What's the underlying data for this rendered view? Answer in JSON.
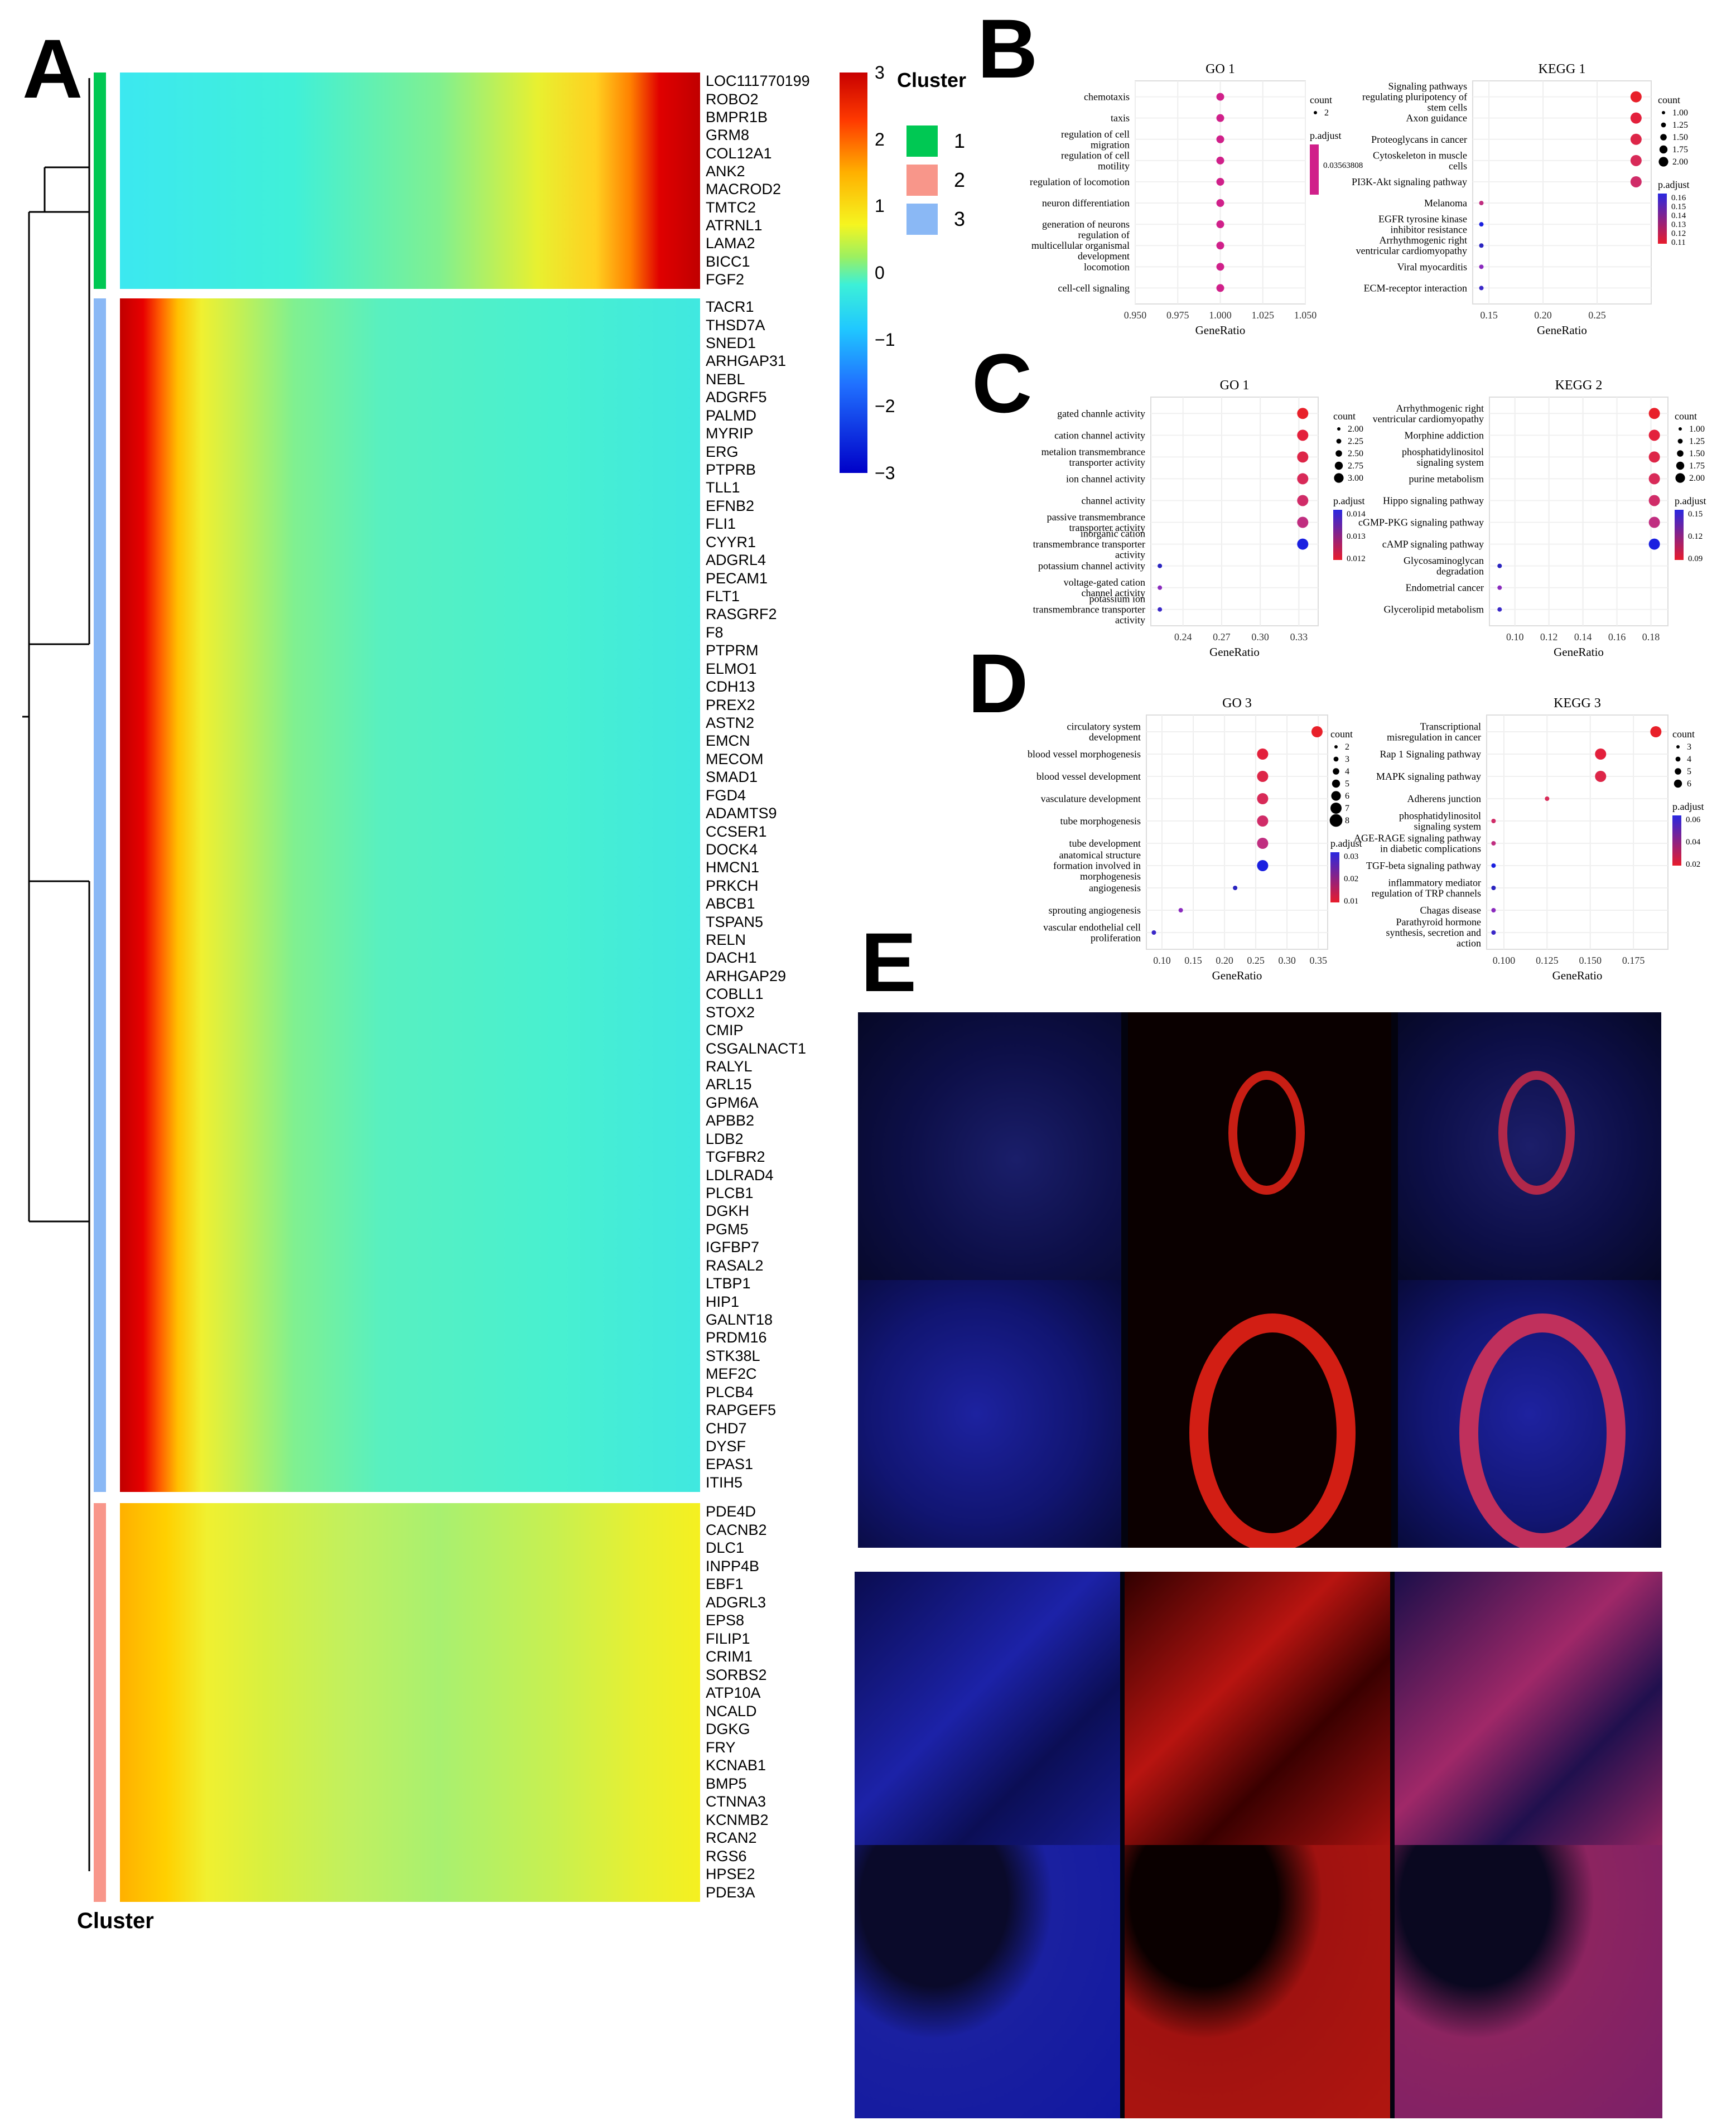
{
  "panels": {
    "A": "A",
    "B": "B",
    "C": "C",
    "D": "D",
    "E": "E"
  },
  "heatmap": {
    "legend_title": "Cluster",
    "bottom_label": "Cluster",
    "colorbar_ticks": [
      "3",
      "2",
      "1",
      "0",
      "−1",
      "−2",
      "−3"
    ],
    "cluster_legend": [
      {
        "label": "1",
        "color": "#00C853"
      },
      {
        "label": "2",
        "color": "#F8968A"
      },
      {
        "label": "3",
        "color": "#8AB8F5"
      }
    ],
    "colors": {
      "low": "#0000C8",
      "mid": "#F5F520",
      "high": "#D00000"
    }
  },
  "chart_data": [
    {
      "type": "heatmap",
      "title": "",
      "row_groups": [
        {
          "cluster": "1",
          "pattern": "late-high",
          "genes": [
            "LOC111770199",
            "ROBO2",
            "BMPR1B",
            "GRM8",
            "COL12A1",
            "ANK2",
            "MACROD2",
            "TMTC2",
            "ATRNL1",
            "LAMA2",
            "BICC1",
            "FGF2"
          ]
        },
        {
          "cluster": "3",
          "pattern": "early-high",
          "genes": [
            "TACR1",
            "THSD7A",
            "SNED1",
            "ARHGAP31",
            "NEBL",
            "ADGRF5",
            "PALMD",
            "MYRIP",
            "ERG",
            "PTPRB",
            "TLL1",
            "EFNB2",
            "FLI1",
            "CYYR1",
            "ADGRL4",
            "PECAM1",
            "FLT1",
            "RASGRF2",
            "F8",
            "PTPRM",
            "ELMO1",
            "CDH13",
            "PREX2",
            "ASTN2",
            "EMCN",
            "MECOM",
            "SMAD1",
            "FGD4",
            "ADAMTS9",
            "CCSER1",
            "DOCK4",
            "HMCN1",
            "PRKCH",
            "ABCB1",
            "TSPAN5",
            "RELN",
            "DACH1",
            "ARHGAP29",
            "COBLL1",
            "STOX2",
            "CMIP",
            "CSGALNACT1",
            "RALYL",
            "ARL15",
            "GPM6A",
            "APBB2",
            "LDB2",
            "TGFBR2",
            "LDLRAD4",
            "PLCB1",
            "DGKH",
            "PGM5",
            "IGFBP7",
            "RASAL2",
            "LTBP1",
            "HIP1",
            "GALNT18",
            "PRDM16",
            "STK38L",
            "MEF2C",
            "PLCB4",
            "RAPGEF5",
            "CHD7",
            "DYSF",
            "EPAS1",
            "ITIH5"
          ]
        },
        {
          "cluster": "2",
          "pattern": "moderate",
          "genes": [
            "PDE4D",
            "CACNB2",
            "DLC1",
            "INPP4B",
            "EBF1",
            "ADGRL3",
            "EPS8",
            "FILIP1",
            "CRIM1",
            "SORBS2",
            "ATP10A",
            "NCALD",
            "DGKG",
            "FRY",
            "KCNAB1",
            "BMP5",
            "CTNNA3",
            "KCNMB2",
            "RCAN2",
            "RGS6",
            "HPSE2",
            "PDE3A"
          ]
        }
      ],
      "scale_range": [
        -3,
        3
      ]
    },
    {
      "type": "scatter",
      "panel": "B",
      "title": "GO 1",
      "xlabel": "GeneRatio",
      "x_ticks": [
        "0.950",
        "0.975",
        "1.000",
        "1.025",
        "1.050"
      ],
      "xlim": [
        0.95,
        1.05
      ],
      "categories": [
        "chemotaxis",
        "taxis",
        "regulation of cell migration",
        "regulation of cell motility",
        "regulation of locomotion",
        "neuron differentiation",
        "generation of neurons",
        "regulation of multicellular organismal development",
        "locomotion",
        "cell-cell signaling"
      ],
      "x": [
        1,
        1,
        1,
        1,
        1,
        1,
        1,
        1,
        1,
        1
      ],
      "count_legend": {
        "title": "count",
        "values": [
          "2"
        ]
      },
      "padj_legend": {
        "title": "p.adjust",
        "values": [
          "0.03563808"
        ]
      }
    },
    {
      "type": "scatter",
      "panel": "B",
      "title": "KEGG 1",
      "xlabel": "GeneRatio",
      "x_ticks": [
        "0.15",
        "0.20",
        "0.25"
      ],
      "xlim": [
        0.135,
        0.3
      ],
      "categories": [
        "Signaling pathways regulating pluripotency of stem cells",
        "Axon guidance",
        "Proteoglycans in cancer",
        "Cytoskeleton in muscle cells",
        "PI3K-Akt signaling pathway",
        "Melanoma",
        "EGFR tyrosine kinase inhibitor resistance",
        "Arrhythmogenic right ventricular cardiomyopathy",
        "Viral myocarditis",
        "ECM-receptor interaction"
      ],
      "x": [
        0.286,
        0.286,
        0.286,
        0.286,
        0.286,
        0.143,
        0.143,
        0.143,
        0.143,
        0.143
      ],
      "count_legend": {
        "title": "count",
        "values": [
          "1.00",
          "1.25",
          "1.50",
          "1.75",
          "2.00"
        ]
      },
      "padj_legend": {
        "title": "p.adjust",
        "values": [
          "0.16",
          "0.15",
          "0.14",
          "0.13",
          "0.12",
          "0.11"
        ]
      }
    },
    {
      "type": "scatter",
      "panel": "C",
      "title": "GO 1",
      "xlabel": "GeneRatio",
      "x_ticks": [
        "0.24",
        "0.27",
        "0.30",
        "0.33"
      ],
      "xlim": [
        0.215,
        0.345
      ],
      "categories": [
        "gated channle activity",
        "cation channel activity",
        "metalion transmembrance transporter activity",
        "ion channel activity",
        "channel activity",
        "passive transmembrance transporter activity",
        "inorganic cation transmembrance transporter activity",
        "potassium channel activity",
        "voltage-gated cation channel activity",
        "potassium ion transmembrance transporter activity"
      ],
      "x": [
        0.333,
        0.333,
        0.333,
        0.333,
        0.333,
        0.333,
        0.333,
        0.222,
        0.222,
        0.222
      ],
      "count_legend": {
        "title": "count",
        "values": [
          "2.00",
          "2.25",
          "2.50",
          "2.75",
          "3.00"
        ]
      },
      "padj_legend": {
        "title": "p.adjust",
        "values": [
          "0.014",
          "0.013",
          "0.012"
        ]
      }
    },
    {
      "type": "scatter",
      "panel": "C",
      "title": "KEGG 2",
      "xlabel": "GeneRatio",
      "x_ticks": [
        "0.10",
        "0.12",
        "0.14",
        "0.16",
        "0.18"
      ],
      "xlim": [
        0.085,
        0.19
      ],
      "categories": [
        "Arrhythmogenic right ventricular cardiomyopathy",
        "Morphine addiction",
        "phosphatidylinositol signaling system",
        "purine metabolism",
        "Hippo signaling pathway",
        "cGMP-PKG signaling pathway",
        "cAMP signaling pathway",
        "Glycosaminoglycan degradation",
        "Endometrial cancer",
        "Glycerolipid metabolism"
      ],
      "x": [
        0.182,
        0.182,
        0.182,
        0.182,
        0.182,
        0.182,
        0.182,
        0.091,
        0.091,
        0.091
      ],
      "count_legend": {
        "title": "count",
        "values": [
          "1.00",
          "1.25",
          "1.50",
          "1.75",
          "2.00"
        ]
      },
      "padj_legend": {
        "title": "p.adjust",
        "values": [
          "0.15",
          "0.12",
          "0.09"
        ]
      }
    },
    {
      "type": "scatter",
      "panel": "D",
      "title": "GO 3",
      "xlabel": "GeneRatio",
      "x_ticks": [
        "0.10",
        "0.15",
        "0.20",
        "0.25",
        "0.30",
        "0.35"
      ],
      "xlim": [
        0.075,
        0.365
      ],
      "categories": [
        "circulatory system development",
        "blood vessel morphogenesis",
        "blood vessel development",
        "vasculature development",
        "tube morphogenesis",
        "tube development",
        "anatomical structure formation involved in morphogenesis",
        "angiogenesis",
        "sprouting angiogenesis",
        "vascular endothelial cell proliferation"
      ],
      "x": [
        0.348,
        0.261,
        0.261,
        0.261,
        0.261,
        0.261,
        0.261,
        0.217,
        0.13,
        0.087
      ],
      "count_legend": {
        "title": "count",
        "values": [
          "2",
          "3",
          "4",
          "5",
          "6",
          "7",
          "8"
        ]
      },
      "padj_legend": {
        "title": "p.adjust",
        "values": [
          "0.03",
          "0.02",
          "0.01"
        ]
      }
    },
    {
      "type": "scatter",
      "panel": "D",
      "title": "KEGG 3",
      "xlabel": "GeneRatio",
      "x_ticks": [
        "0.100",
        "0.125",
        "0.150",
        "0.175"
      ],
      "xlim": [
        0.09,
        0.195
      ],
      "categories": [
        "Transcriptional misregulation in cancer",
        "Rap 1 Signaling pathway",
        "MAPK signaling pathway",
        "Adherens junction",
        "phosphatidylinositol signaling system",
        "AGE-RAGE signaling pathway in diabetic complications",
        "TGF-beta signaling pathway",
        "inflammatory mediator regulation of TRP channels",
        "Chagas disease",
        "Parathyroid hormone synthesis, secretion and action"
      ],
      "x": [
        0.188,
        0.156,
        0.156,
        0.125,
        0.094,
        0.094,
        0.094,
        0.094,
        0.094,
        0.094
      ],
      "count_legend": {
        "title": "count",
        "values": [
          "3",
          "4",
          "5",
          "6"
        ]
      },
      "padj_legend": {
        "title": "p.adjust",
        "values": [
          "0.06",
          "0.04",
          "0.02"
        ]
      }
    }
  ]
}
